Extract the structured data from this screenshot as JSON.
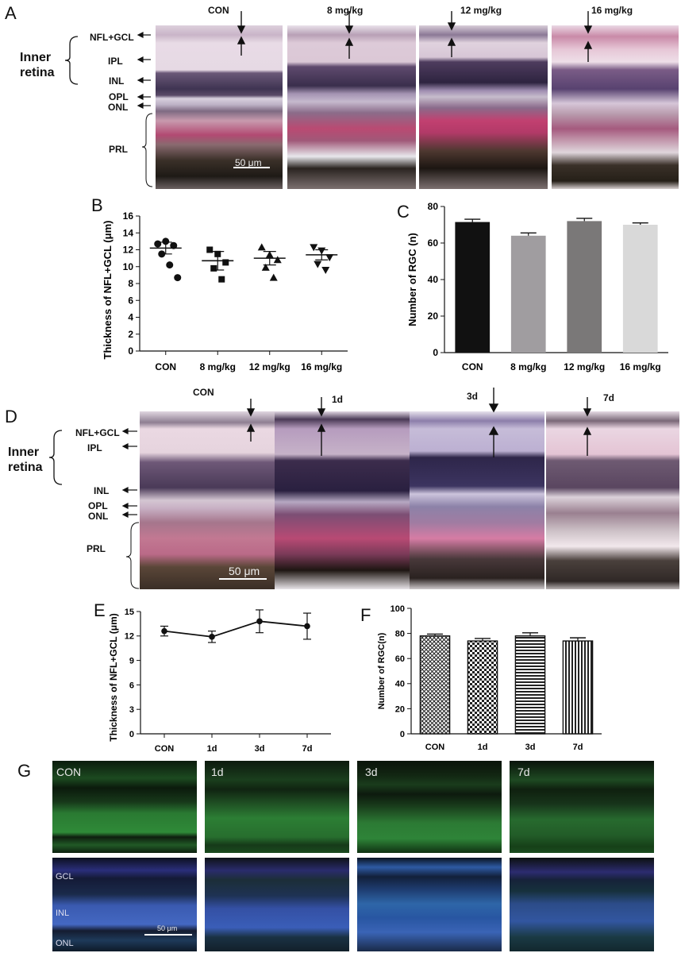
{
  "panels": {
    "A": {
      "label": "A",
      "headers": [
        "CON",
        "8 mg/kg",
        "12 mg/kg",
        "16 mg/kg"
      ],
      "inner_retina": [
        "Inner",
        "retina"
      ],
      "layers": [
        "NFL+GCL",
        "IPL",
        "INL",
        "OPL",
        "ONL",
        "PRL"
      ],
      "scale_bar": "50 μm"
    },
    "B": {
      "label": "B"
    },
    "C": {
      "label": "C"
    },
    "D": {
      "label": "D",
      "headers": [
        "CON",
        "1d",
        "3d",
        "7d"
      ],
      "inner_retina": [
        "Inner",
        "retina"
      ],
      "layers": [
        "NFL+GCL",
        "IPL",
        "INL",
        "OPL",
        "ONL",
        "PRL"
      ],
      "scale_bar": "50 μm"
    },
    "E": {
      "label": "E"
    },
    "F": {
      "label": "F"
    },
    "G": {
      "label": "G",
      "headers": [
        "CON",
        "1d",
        "3d",
        "7d"
      ],
      "layers": [
        "GCL",
        "INL",
        "ONL"
      ],
      "scale_bar": "50 μm"
    }
  },
  "chart_data": [
    {
      "panel": "B",
      "type": "scatter",
      "categories": [
        "CON",
        "8 mg/kg",
        "12 mg/kg",
        "16 mg/kg"
      ],
      "ylabel": "Thickness of NFL+GCL (μm)",
      "xlabel": "",
      "ylim": [
        0,
        16
      ],
      "yticks": [
        0,
        2,
        4,
        6,
        8,
        10,
        12,
        14,
        16
      ],
      "markers": [
        "circle",
        "square",
        "triangle-up",
        "triangle-down"
      ],
      "points": [
        [
          12.7,
          13.0,
          12.5,
          11.5,
          10.2,
          8.7
        ],
        [
          12.0,
          11.5,
          10.5,
          9.8,
          8.5
        ],
        [
          12.3,
          11.4,
          10.8,
          9.9,
          8.7
        ],
        [
          12.3,
          11.9,
          11.1,
          10.3,
          9.6
        ]
      ],
      "mean": [
        12.2,
        10.7,
        11.0,
        11.4
      ],
      "sem": [
        0.7,
        1.1,
        0.8,
        0.6
      ],
      "color": "#111111"
    },
    {
      "panel": "C",
      "type": "bar",
      "categories": [
        "CON",
        "8 mg/kg",
        "12 mg/kg",
        "16 mg/kg"
      ],
      "values": [
        71.5,
        64,
        72,
        70
      ],
      "err": [
        1.5,
        1.5,
        1.5,
        1.0
      ],
      "ylabel": "Number of RGC (n)",
      "xlabel": "",
      "ylim": [
        0,
        80
      ],
      "yticks": [
        0,
        20,
        40,
        60,
        80
      ],
      "colors": [
        "#111111",
        "#a09da0",
        "#7a7878",
        "#d9d9d9"
      ]
    },
    {
      "panel": "E",
      "type": "line",
      "categories": [
        "CON",
        "1d",
        "3d",
        "7d"
      ],
      "values": [
        12.6,
        11.9,
        13.8,
        13.2
      ],
      "err": [
        0.6,
        0.7,
        1.4,
        1.6
      ],
      "ylabel": "Thickness of NFL+GCL (μm)",
      "xlabel": "",
      "ylim": [
        0,
        15
      ],
      "yticks": [
        0,
        3,
        6,
        9,
        12,
        15
      ],
      "color": "#111111"
    },
    {
      "panel": "F",
      "type": "bar",
      "categories": [
        "CON",
        "1d",
        "3d",
        "7d"
      ],
      "values": [
        78,
        74,
        78,
        74
      ],
      "err": [
        1.5,
        2,
        2.5,
        2.5
      ],
      "ylabel": "Number of RGC(n)",
      "xlabel": "",
      "ylim": [
        0,
        100
      ],
      "yticks": [
        0,
        20,
        40,
        60,
        80,
        100
      ],
      "patterns": [
        "crosshatch",
        "checker",
        "horizontal",
        "vertical"
      ]
    }
  ]
}
